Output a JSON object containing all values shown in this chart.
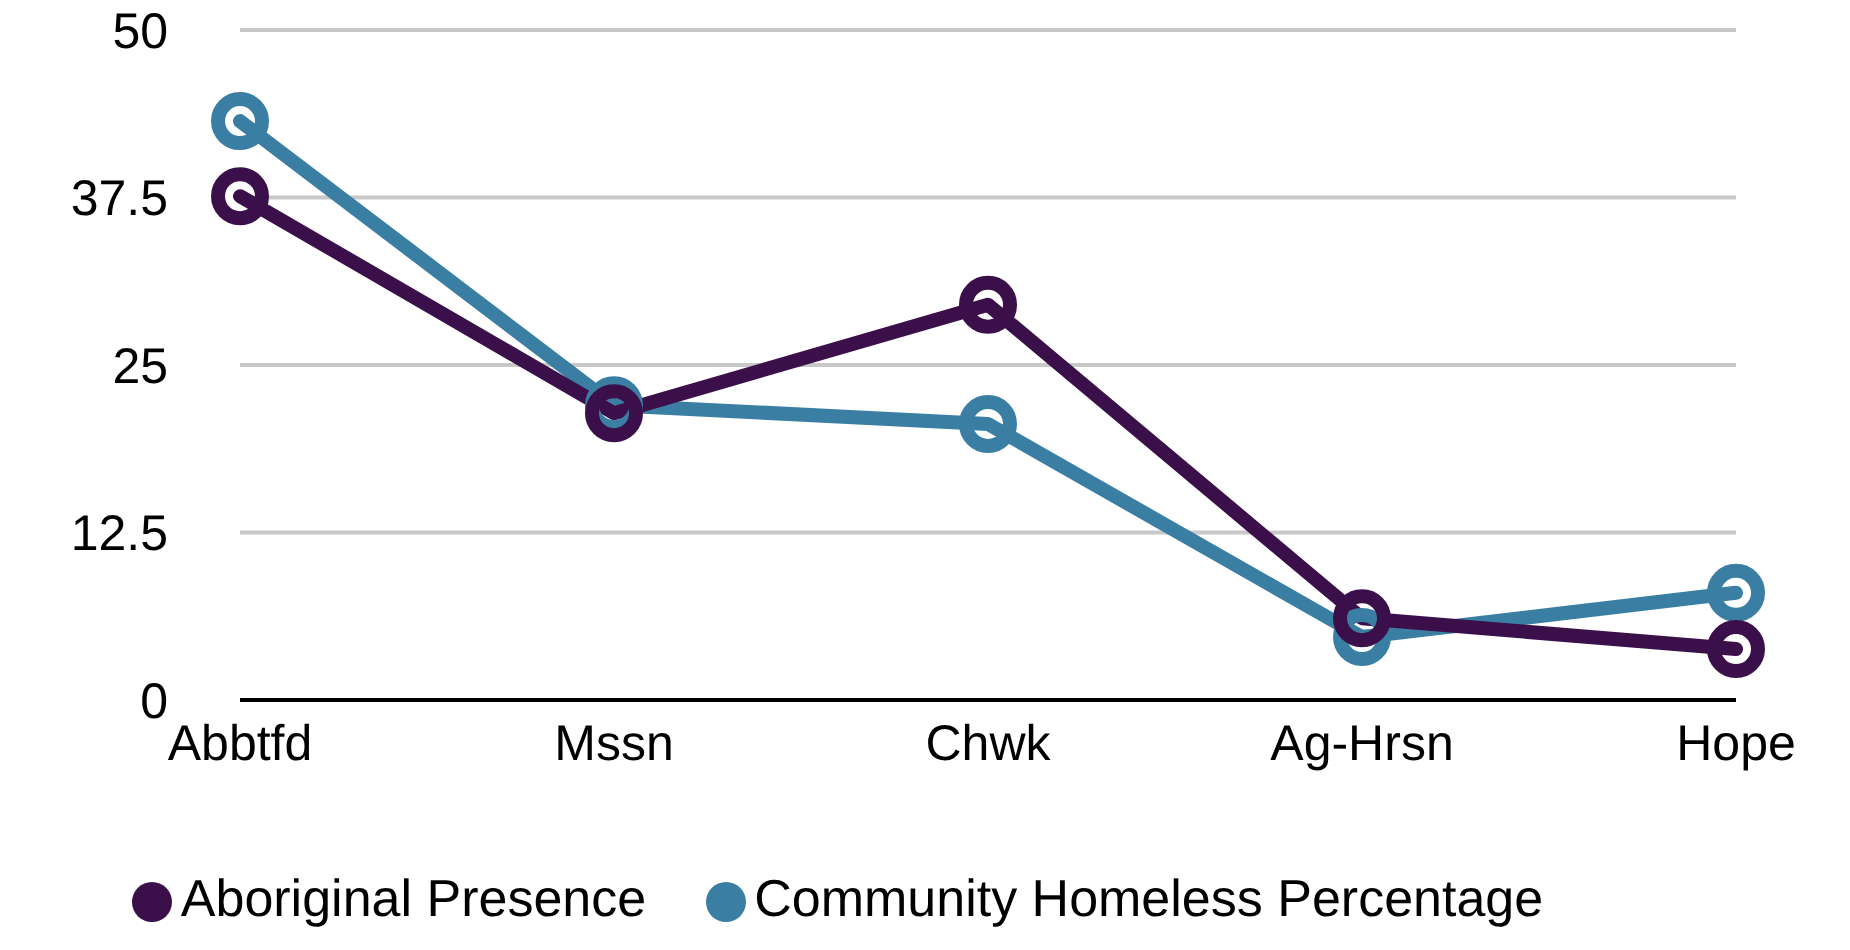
{
  "chart_data": {
    "type": "line",
    "categories": [
      "Abbtfd",
      "Mssn",
      "Chwk",
      "Ag-Hrsn",
      "Hope"
    ],
    "series": [
      {
        "name": "Aboriginal Presence",
        "color": "#3b0f4a",
        "values": [
          37.6,
          21.4,
          29.5,
          6.1,
          3.8
        ]
      },
      {
        "name": "Community Homeless Percentage",
        "color": "#3a7fa3",
        "values": [
          43.2,
          22.0,
          20.6,
          4.7,
          8.0
        ]
      }
    ],
    "ylim": [
      0,
      50
    ],
    "yticks": [
      0,
      12.5,
      25,
      37.5,
      50
    ],
    "grid": "y",
    "legend": "bottom",
    "marker": "circle",
    "line_style": "solid"
  }
}
